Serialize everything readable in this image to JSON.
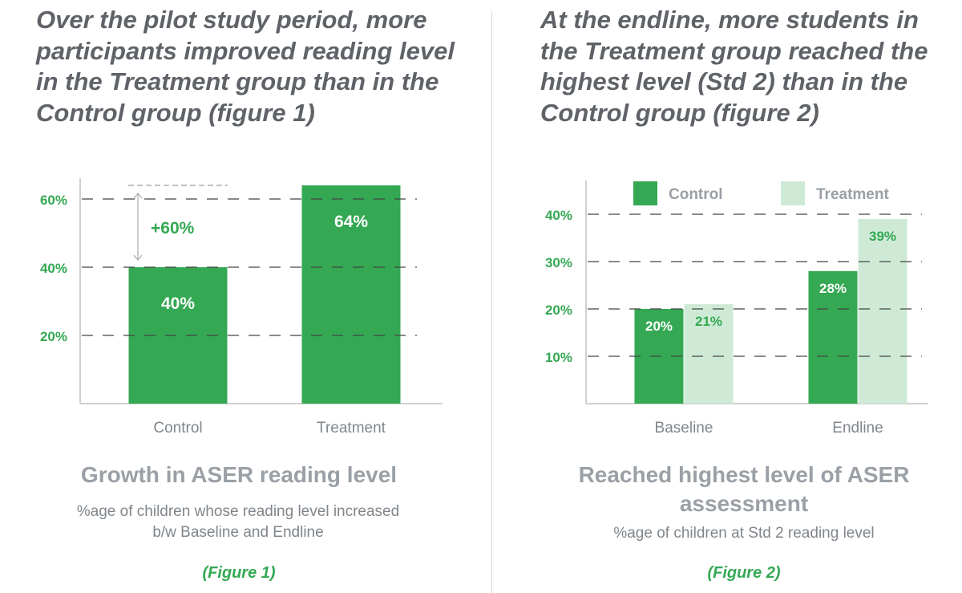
{
  "colors": {
    "control": "#34a853",
    "treatment": "#ceead6",
    "axis_label": "#34a853",
    "annotation": "#34a853",
    "headline": "#5f6368"
  },
  "panel_left": {
    "headline": "Over the pilot study period, more participants improved reading level in the Treatment group than in the Control group (figure 1)",
    "chart_title": "Growth in ASER reading level",
    "chart_subtitle": "%age of children whose reading level increased b/w Baseline and Endline",
    "figure_label": "(Figure 1)"
  },
  "panel_right": {
    "headline": "At the endline, more students in the Treatment group reached the highest level (Std 2) than in the Control group (figure 2)",
    "chart_title": "Reached highest level of ASER assessment",
    "chart_subtitle": "%age of children at Std 2 reading level",
    "figure_label": "(Figure 2)"
  },
  "chart_data": [
    {
      "type": "bar",
      "title": "Growth in ASER reading level",
      "categories": [
        "Control",
        "Treatment"
      ],
      "values": [
        40,
        64
      ],
      "value_labels": [
        "40%",
        "64%"
      ],
      "yticks": [
        20,
        40,
        60
      ],
      "ytick_labels": [
        "20%",
        "40%",
        "60%"
      ],
      "ylim": [
        0,
        65
      ],
      "grid": true,
      "annotation": {
        "text": "+60%",
        "from": 40,
        "to": 64
      },
      "xlabel": "",
      "ylabel": ""
    },
    {
      "type": "bar",
      "title": "Reached highest level of ASER assessment",
      "categories": [
        "Baseline",
        "Endline"
      ],
      "series": [
        {
          "name": "Control",
          "values": [
            20,
            28
          ],
          "value_labels": [
            "20%",
            "28%"
          ]
        },
        {
          "name": "Treatment",
          "values": [
            21,
            39
          ],
          "value_labels": [
            "21%",
            "39%"
          ]
        }
      ],
      "yticks": [
        10,
        20,
        30,
        40
      ],
      "ytick_labels": [
        "10%",
        "20%",
        "30%",
        "40%"
      ],
      "ylim": [
        0,
        44
      ],
      "grid": true,
      "legend": "top",
      "xlabel": "",
      "ylabel": ""
    }
  ]
}
